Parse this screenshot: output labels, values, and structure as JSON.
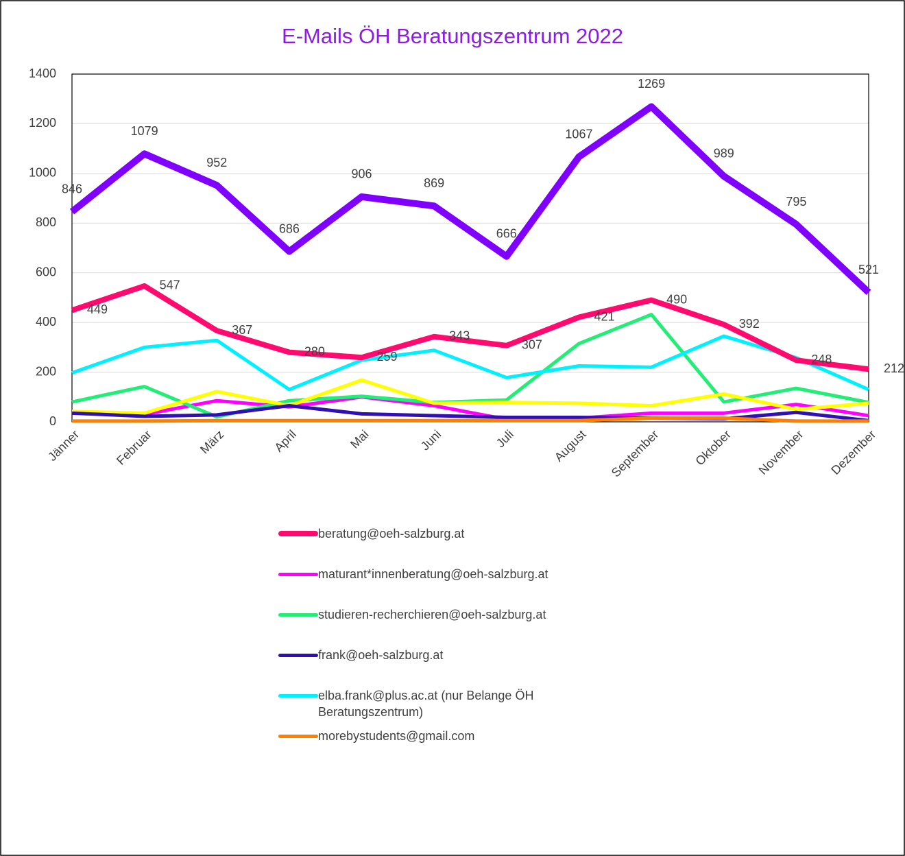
{
  "chart_data": {
    "type": "line",
    "title": "E-Mails ÖH Beratungszentrum 2022",
    "categories": [
      "Jänner",
      "Februar",
      "März",
      "April",
      "Mai",
      "Juni",
      "Juli",
      "August",
      "September",
      "Oktober",
      "November",
      "Dezember"
    ],
    "ylim": [
      0,
      1400
    ],
    "yticks": [
      0,
      200,
      400,
      600,
      800,
      1000,
      1200,
      1400
    ],
    "grid": true,
    "series": [
      {
        "name": "maturant*innenberatung@oeh-salzburg.at",
        "color": "#ff00ff",
        "values": [
          40,
          30,
          85,
          60,
          100,
          65,
          10,
          15,
          35,
          35,
          70,
          25
        ]
      },
      {
        "name": "studieren-recherchieren@oeh-salzburg.at",
        "color": "#22ee77",
        "values": [
          80,
          142,
          20,
          85,
          103,
          78,
          88,
          315,
          432,
          80,
          135,
          78
        ]
      },
      {
        "name": "elba.frank@plus.ac.at (nur Belange ÖH Beratungszentrum)",
        "color": "#00f0ff",
        "values": [
          197,
          300,
          328,
          130,
          248,
          288,
          178,
          225,
          220,
          345,
          258,
          130
        ]
      },
      {
        "color": "#ffff00",
        "values": [
          42,
          35,
          122,
          65,
          168,
          75,
          78,
          75,
          65,
          112,
          50,
          75
        ]
      },
      {
        "name": "frank@oeh-salzburg.at",
        "color": "#3010b0",
        "values": [
          35,
          22,
          28,
          65,
          32,
          25,
          18,
          18,
          15,
          12,
          38,
          5
        ]
      },
      {
        "name": "morebystudents@gmail.com",
        "color": "#ff7f00",
        "values": [
          3,
          3,
          5,
          5,
          5,
          5,
          5,
          5,
          15,
          15,
          3,
          3
        ]
      },
      {
        "name": "beratung@oeh-salzburg.at",
        "color": "#ff0a6e",
        "values": [
          449,
          547,
          367,
          280,
          259,
          343,
          307,
          421,
          490,
          392,
          248,
          212
        ],
        "labels": true
      },
      {
        "color": "#7f00ff",
        "values": [
          846,
          1079,
          952,
          686,
          906,
          869,
          666,
          1067,
          1269,
          989,
          795,
          521
        ],
        "labels": true
      }
    ],
    "legend_order": [
      6,
      0,
      1,
      4,
      2,
      5
    ]
  }
}
